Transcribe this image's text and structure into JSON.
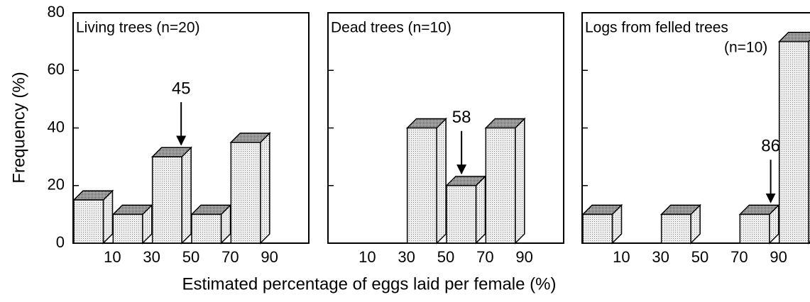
{
  "xlabel": "Estimated percentage of eggs laid per female (%)",
  "ylabel": "Frequency (%)",
  "chart_data": [
    {
      "type": "histogram",
      "title": "Living trees (n=20)",
      "bins": [
        -10,
        10,
        30,
        50,
        70,
        90,
        110
      ],
      "values": [
        15,
        10,
        30,
        10,
        35,
        0
      ],
      "xticks": [
        10,
        30,
        50,
        70,
        90
      ],
      "ylim": [
        0,
        80
      ],
      "yticks": [
        0,
        20,
        40,
        60,
        80
      ],
      "annotations": [
        45
      ]
    },
    {
      "type": "histogram",
      "title": "Dead trees (n=10)",
      "bins": [
        -10,
        10,
        30,
        50,
        70,
        90,
        110
      ],
      "values": [
        0,
        0,
        40,
        20,
        40,
        0
      ],
      "xticks": [
        10,
        30,
        50,
        70,
        90
      ],
      "ylim": [
        0,
        80
      ],
      "yticks": [
        0,
        20,
        40,
        60,
        80
      ],
      "annotations": [
        58
      ]
    },
    {
      "type": "histogram",
      "title": "Logs from felled trees",
      "subtitle": "(n=10)",
      "bins": [
        -10,
        10,
        30,
        50,
        70,
        90,
        110
      ],
      "values": [
        10,
        0,
        10,
        0,
        10,
        70
      ],
      "xticks": [
        10,
        30,
        50,
        70,
        90
      ],
      "ylim": [
        0,
        80
      ],
      "yticks": [
        0,
        20,
        40,
        60,
        80
      ],
      "annotations": [
        86
      ]
    }
  ]
}
